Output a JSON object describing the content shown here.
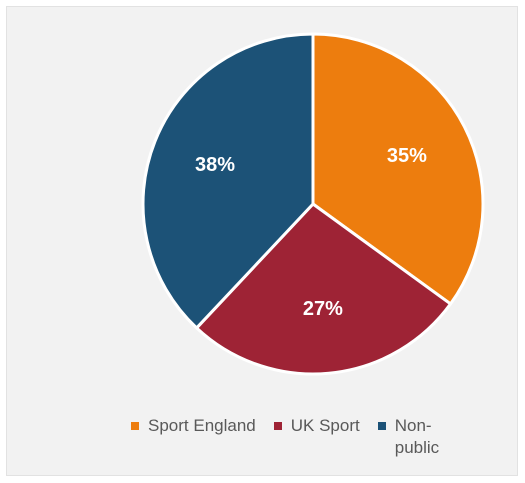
{
  "chart_data": {
    "type": "pie",
    "title": "",
    "slices": [
      {
        "name": "Sport England",
        "value": 35,
        "label": "35%",
        "color": "#ED7D0E"
      },
      {
        "name": "UK Sport",
        "value": 27,
        "label": "27%",
        "color": "#9E2335"
      },
      {
        "name": "Non-public",
        "value": 38,
        "label": "38%",
        "color": "#1C5277"
      }
    ],
    "start": "12 o'clock",
    "direction": "clockwise",
    "legend_position": "bottom"
  },
  "legend": {
    "items": [
      {
        "label": "Sport England",
        "color": "#ED7D0E"
      },
      {
        "label": "UK Sport",
        "color": "#9E2335"
      },
      {
        "label": "Non-public",
        "color": "#1C5277"
      }
    ]
  }
}
